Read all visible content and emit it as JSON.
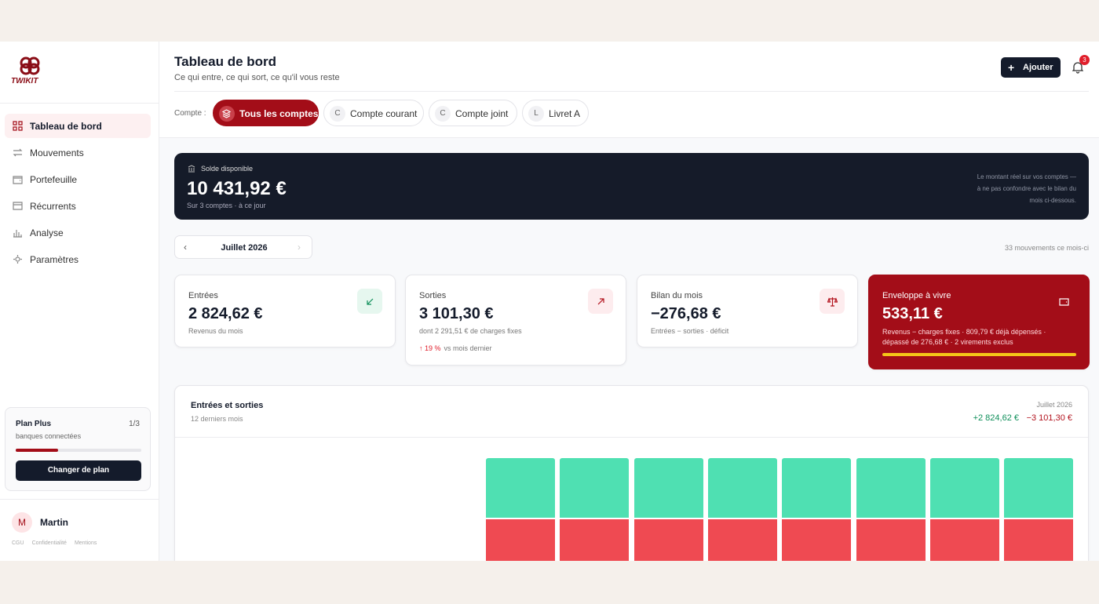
{
  "sidebar": {
    "logo": "TWIKIT",
    "nav": [
      "Tableau de bord",
      "Mouvements",
      "Portefeuille",
      "Récurrents",
      "Analyse",
      "Paramètres"
    ],
    "plan": {
      "title": "Plan Plus",
      "count": "1/3",
      "subtitle": "banques connectées",
      "button": "Changer de plan"
    },
    "user": {
      "initial": "M",
      "name": "Martin"
    },
    "footer_links": [
      "CGU",
      "Confidentialité",
      "Mentions"
    ]
  },
  "header": {
    "title": "Tableau de bord",
    "subtitle": "Ce qui entre, ce qui sort, ce qu'il vous reste",
    "add_button": "Ajouter",
    "notifications": "3"
  },
  "accounts": {
    "label": "Compte :",
    "options": [
      {
        "label": "Tous les comptes"
      },
      {
        "initial": "C",
        "label": "Compte courant"
      },
      {
        "initial": "C",
        "label": "Compte joint"
      },
      {
        "initial": "L",
        "label": "Livret A"
      }
    ]
  },
  "balance": {
    "label": "Solde disponible",
    "amount": "10 431,92 €",
    "note": "Sur 3 comptes · à ce jour",
    "aside": [
      "Le montant réel sur vos comptes —",
      "à ne pas confondre avec le bilan du",
      "mois ci-dessous."
    ]
  },
  "period": {
    "month": "Juillet 2026",
    "count": "33 mouvements ce mois-ci"
  },
  "cards": [
    {
      "title": "Entrées",
      "amount": "2 824,62 €",
      "detail": "Revenus du mois"
    },
    {
      "title": "Sorties",
      "amount": "3 101,30 €",
      "detail": "dont 2 291,51 € de charges fixes",
      "trend": "↑ 19 %",
      "trend_note": "vs mois dernier"
    },
    {
      "title": "Bilan du mois",
      "amount": "−276,68 €",
      "detail": "Entrées − sorties · déficit"
    },
    {
      "title": "Enveloppe à vivre",
      "amount": "533,11 €",
      "detail": [
        "Revenus − charges fixes · 809,79 € déjà dépensés ·",
        "dépassé de 276,68 € · 2 virements exclus"
      ]
    }
  ],
  "flow_chart": {
    "title": "Entrées et sorties",
    "subtitle": "12 derniers mois",
    "month": "Juillet 2026",
    "income": "+2 824,62 €",
    "expenses": "−3 101,30 €"
  }
}
